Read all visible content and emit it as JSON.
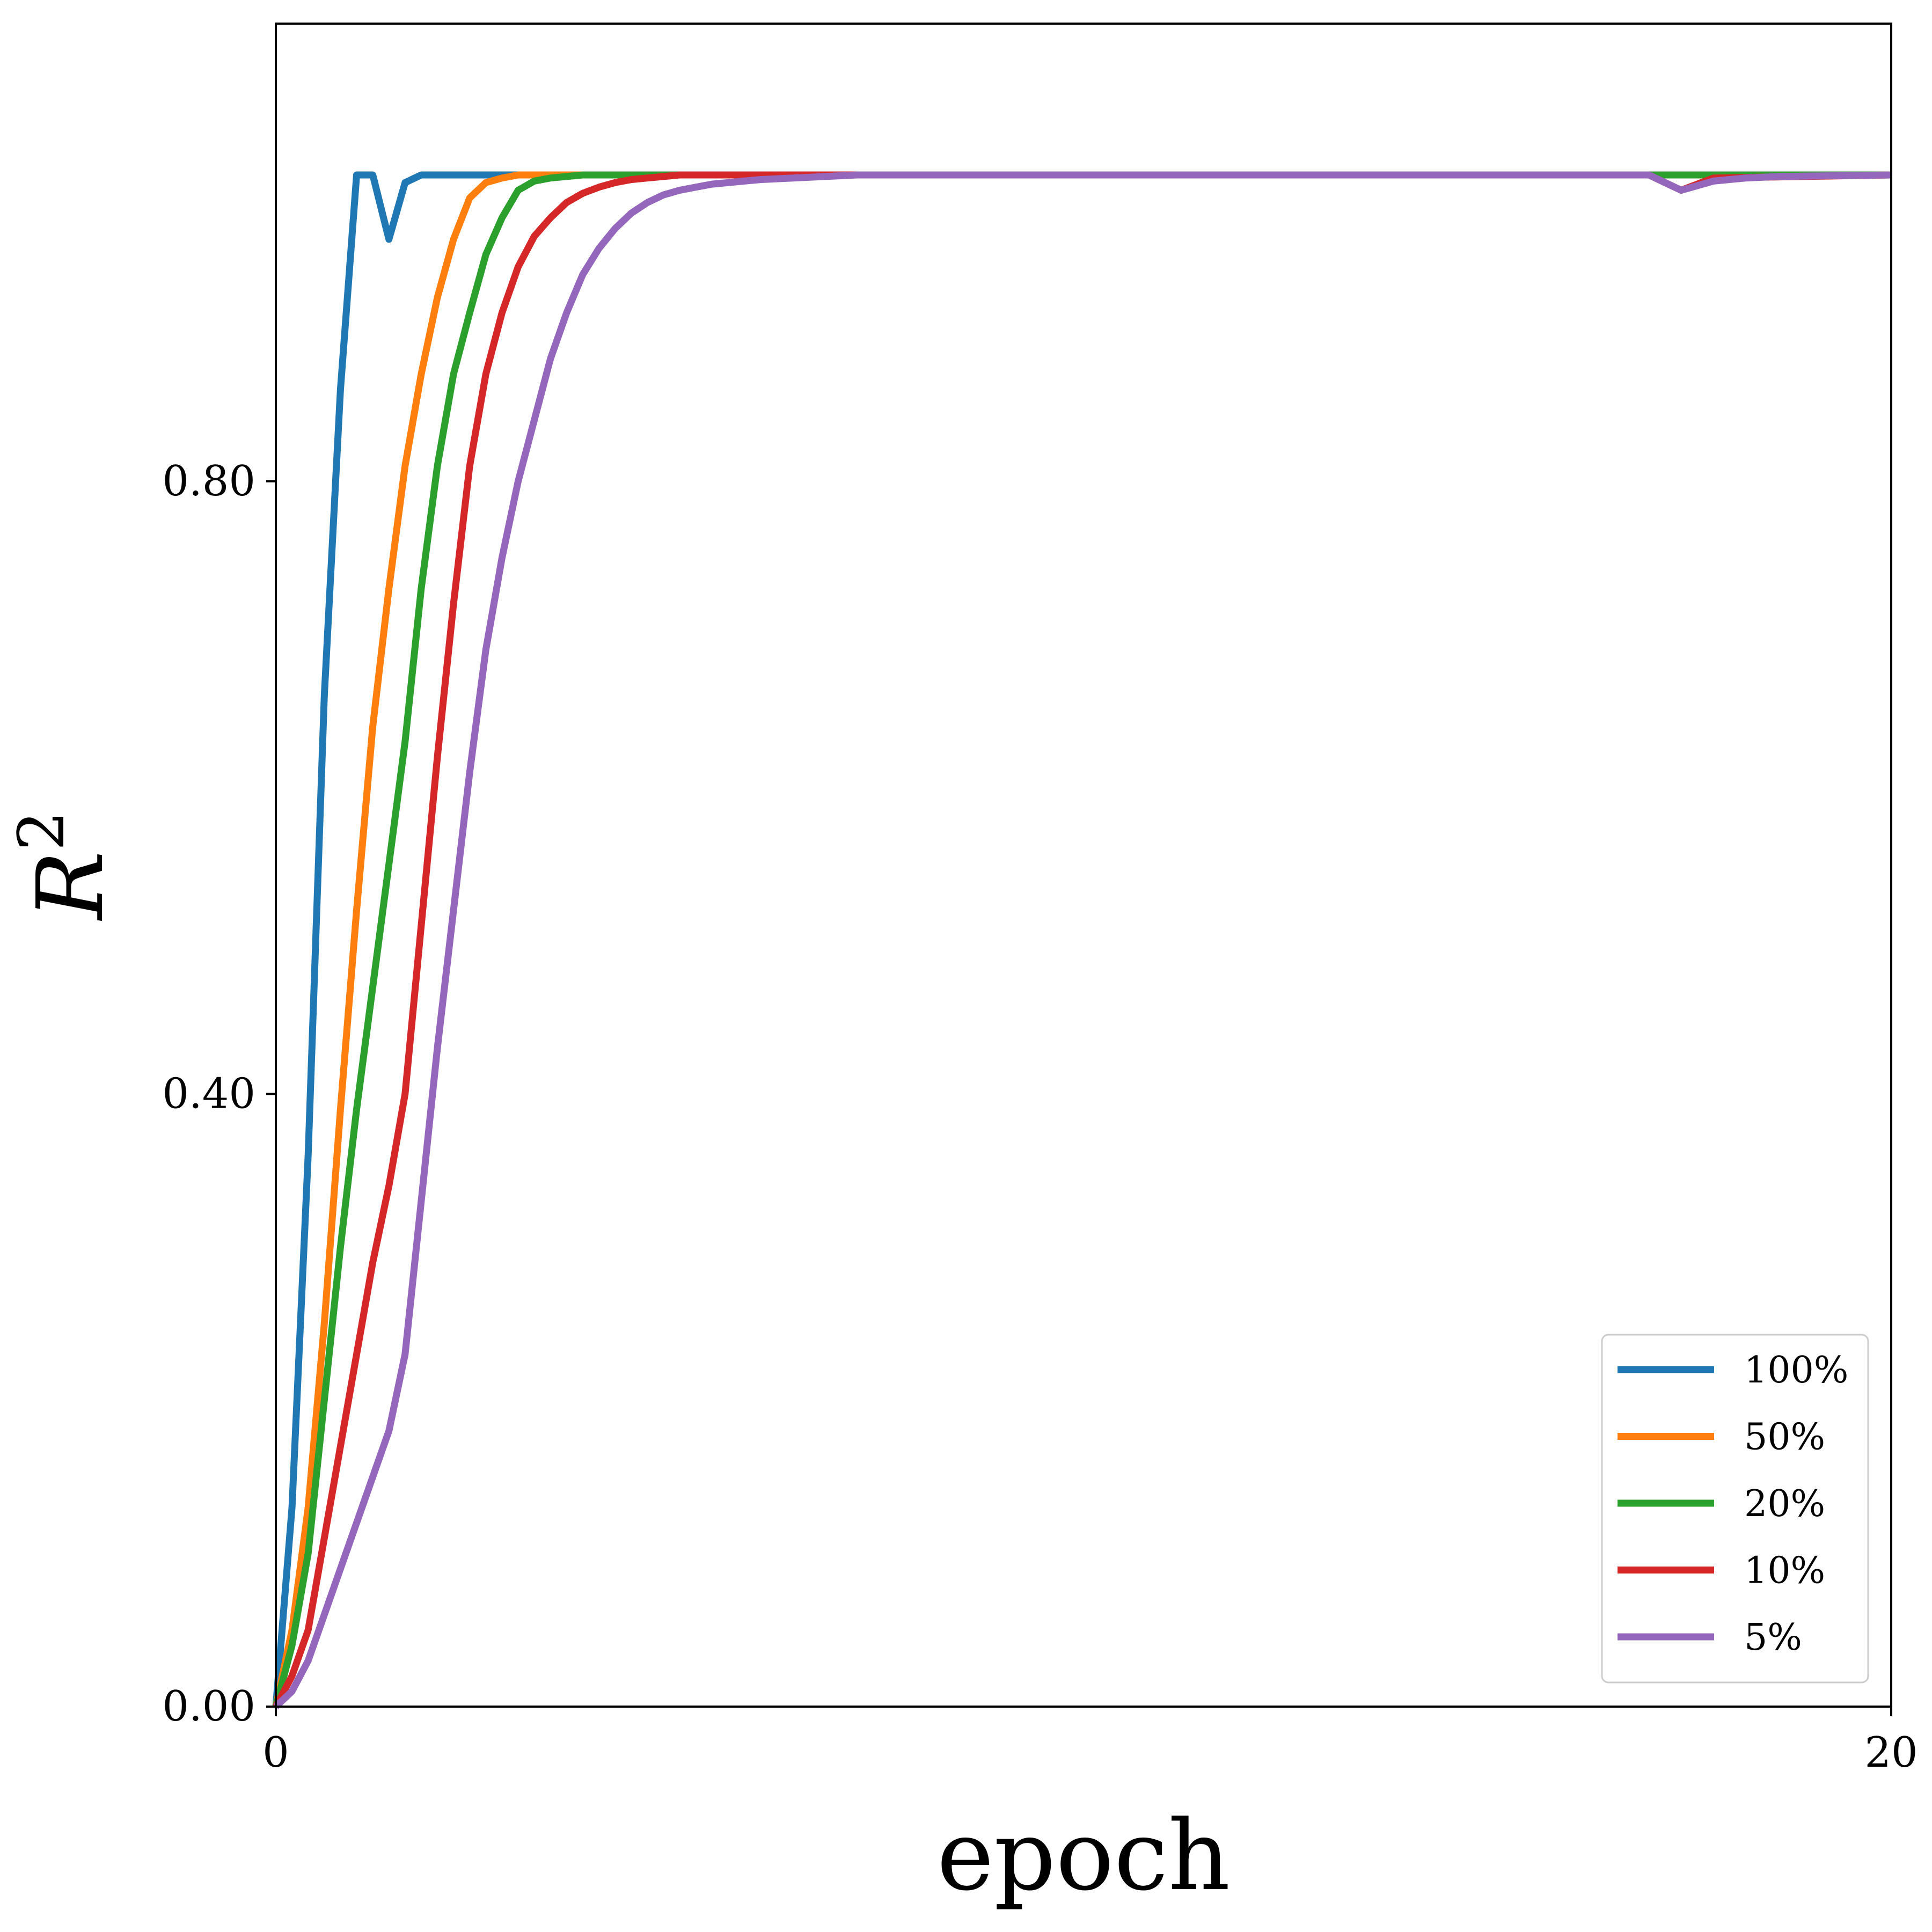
{
  "chart_data": {
    "type": "line",
    "title": "",
    "xlabel": "epoch",
    "ylabel_main": "R",
    "ylabel_sup": "2",
    "xlim": [
      0,
      20
    ],
    "ylim": [
      0,
      1.1
    ],
    "xticks": [
      {
        "value": 0,
        "label": "0"
      },
      {
        "value": 20,
        "label": "20"
      }
    ],
    "yticks": [
      {
        "value": 0.0,
        "label": "0.00"
      },
      {
        "value": 0.4,
        "label": "0.40"
      },
      {
        "value": 0.8,
        "label": "0.80"
      }
    ],
    "grid": false,
    "legend_position": "bottom-right",
    "series": [
      {
        "name": "100%",
        "color": "#1f77b4",
        "x": [
          0,
          0.2,
          0.4,
          0.6,
          0.8,
          1.0,
          1.2,
          1.4,
          1.6,
          1.8,
          2.0,
          20
        ],
        "y": [
          0.0,
          0.13,
          0.36,
          0.66,
          0.86,
          1.0,
          1.0,
          0.958,
          0.995,
          1.0,
          1.0,
          1.0
        ]
      },
      {
        "name": "50%",
        "color": "#ff7f0e",
        "x": [
          0,
          0.2,
          0.4,
          0.6,
          0.8,
          1.0,
          1.2,
          1.4,
          1.6,
          1.8,
          2.0,
          2.2,
          2.4,
          2.6,
          2.8,
          3.0,
          3.2,
          3.4,
          20
        ],
        "y": [
          0.0,
          0.05,
          0.13,
          0.25,
          0.39,
          0.52,
          0.64,
          0.73,
          0.81,
          0.87,
          0.92,
          0.958,
          0.985,
          0.995,
          0.998,
          1.0,
          1.0,
          1.0,
          1.0
        ]
      },
      {
        "name": "20%",
        "color": "#2ca02c",
        "x": [
          0,
          0.2,
          0.4,
          0.6,
          0.8,
          1.0,
          1.2,
          1.4,
          1.6,
          1.8,
          2.0,
          2.2,
          2.4,
          2.6,
          2.8,
          3.0,
          3.2,
          3.4,
          3.6,
          3.8,
          4.0,
          4.4,
          20
        ],
        "y": [
          0.0,
          0.04,
          0.1,
          0.2,
          0.3,
          0.39,
          0.47,
          0.55,
          0.63,
          0.73,
          0.81,
          0.87,
          0.91,
          0.948,
          0.972,
          0.99,
          0.996,
          0.998,
          0.999,
          1.0,
          1.0,
          1.0,
          1.0
        ]
      },
      {
        "name": "10%",
        "color": "#d62728",
        "x": [
          0,
          0.2,
          0.4,
          0.6,
          0.8,
          1.0,
          1.2,
          1.4,
          1.6,
          1.8,
          2.0,
          2.2,
          2.4,
          2.6,
          2.8,
          3.0,
          3.2,
          3.4,
          3.6,
          3.8,
          4.0,
          4.2,
          4.4,
          4.6,
          4.8,
          5.0,
          5.4,
          5.8,
          6.2,
          17.0,
          17.4,
          17.8,
          20
        ],
        "y": [
          0.0,
          0.02,
          0.05,
          0.11,
          0.17,
          0.23,
          0.29,
          0.34,
          0.4,
          0.51,
          0.62,
          0.72,
          0.81,
          0.87,
          0.91,
          0.94,
          0.96,
          0.972,
          0.982,
          0.988,
          0.992,
          0.995,
          0.997,
          0.998,
          0.999,
          1.0,
          1.0,
          1.0,
          1.0,
          1.0,
          0.99,
          0.998,
          1.0
        ]
      },
      {
        "name": "5%",
        "color": "#9467bd",
        "x": [
          0,
          0.2,
          0.4,
          0.6,
          0.8,
          1.0,
          1.2,
          1.4,
          1.6,
          1.8,
          2.0,
          2.2,
          2.4,
          2.6,
          2.8,
          3.0,
          3.2,
          3.4,
          3.6,
          3.8,
          4.0,
          4.2,
          4.4,
          4.6,
          4.8,
          5.0,
          5.2,
          5.4,
          5.6,
          5.8,
          6.0,
          6.4,
          6.8,
          7.2,
          7.6,
          8.0,
          17.0,
          17.4,
          17.8,
          18.2,
          18.6,
          20
        ],
        "y": [
          0.0,
          0.01,
          0.03,
          0.06,
          0.09,
          0.12,
          0.15,
          0.18,
          0.23,
          0.33,
          0.43,
          0.52,
          0.61,
          0.69,
          0.75,
          0.8,
          0.84,
          0.88,
          0.91,
          0.935,
          0.952,
          0.965,
          0.975,
          0.982,
          0.987,
          0.99,
          0.992,
          0.994,
          0.995,
          0.996,
          0.997,
          0.998,
          0.999,
          1.0,
          1.0,
          1.0,
          1.0,
          0.99,
          0.996,
          0.998,
          0.999,
          1.0
        ]
      }
    ]
  }
}
